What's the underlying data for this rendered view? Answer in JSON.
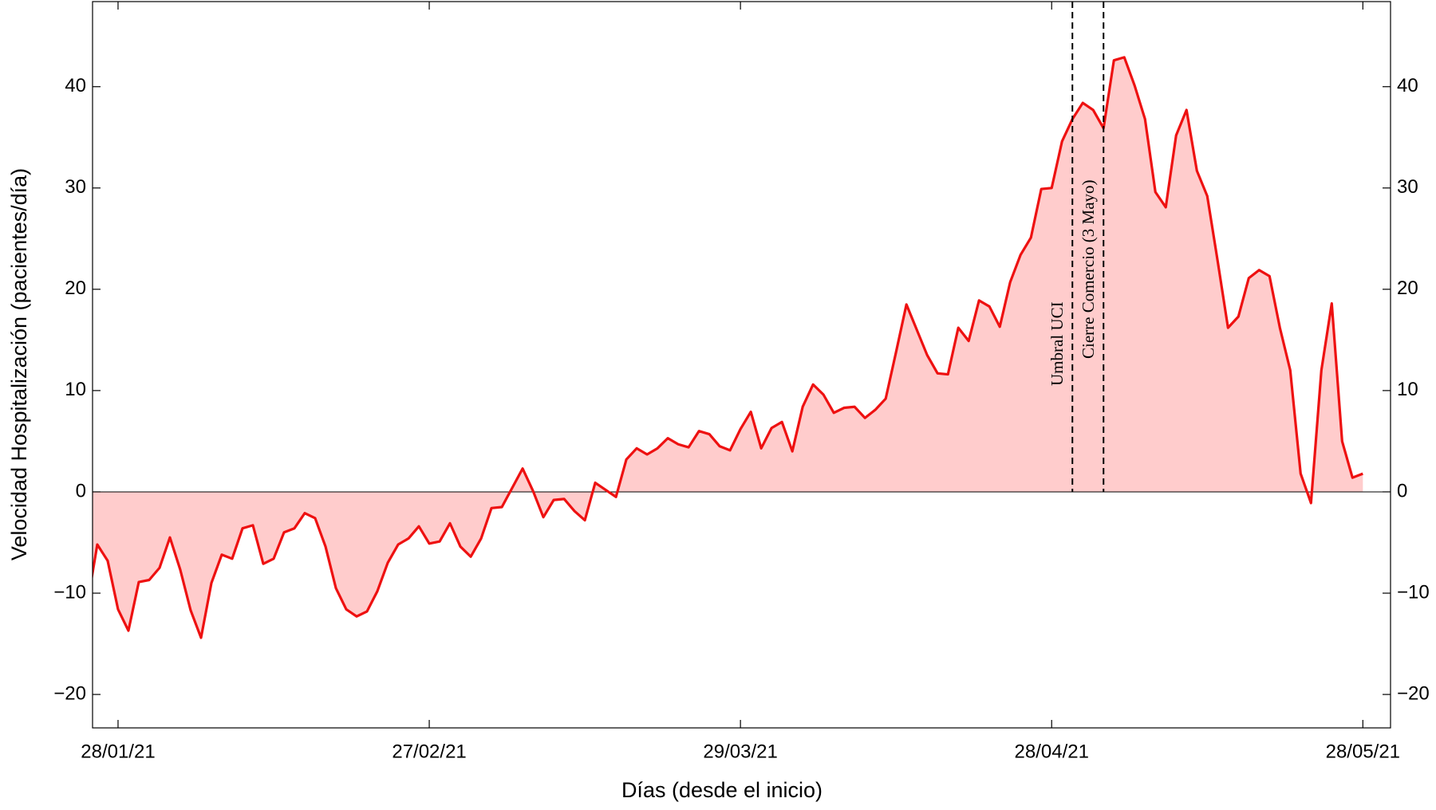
{
  "chart_data": {
    "type": "area",
    "x_label": "Días (desde el inicio)",
    "y_label": "Velocidad Hospitalización (pacientes/día)",
    "x": [
      "2021-01-25",
      "2021-01-26",
      "2021-01-27",
      "2021-01-28",
      "2021-01-29",
      "2021-01-30",
      "2021-01-31",
      "2021-02-01",
      "2021-02-02",
      "2021-02-03",
      "2021-02-04",
      "2021-02-05",
      "2021-02-06",
      "2021-02-07",
      "2021-02-08",
      "2021-02-09",
      "2021-02-10",
      "2021-02-11",
      "2021-02-12",
      "2021-02-13",
      "2021-02-14",
      "2021-02-15",
      "2021-02-16",
      "2021-02-17",
      "2021-02-18",
      "2021-02-19",
      "2021-02-20",
      "2021-02-21",
      "2021-02-22",
      "2021-02-23",
      "2021-02-24",
      "2021-02-25",
      "2021-02-26",
      "2021-02-27",
      "2021-02-28",
      "2021-03-01",
      "2021-03-02",
      "2021-03-03",
      "2021-03-04",
      "2021-03-05",
      "2021-03-06",
      "2021-03-07",
      "2021-03-08",
      "2021-03-09",
      "2021-03-10",
      "2021-03-11",
      "2021-03-12",
      "2021-03-13",
      "2021-03-14",
      "2021-03-15",
      "2021-03-16",
      "2021-03-17",
      "2021-03-18",
      "2021-03-19",
      "2021-03-20",
      "2021-03-21",
      "2021-03-22",
      "2021-03-23",
      "2021-03-24",
      "2021-03-25",
      "2021-03-26",
      "2021-03-27",
      "2021-03-28",
      "2021-03-29",
      "2021-03-30",
      "2021-03-31",
      "2021-04-01",
      "2021-04-02",
      "2021-04-03",
      "2021-04-04",
      "2021-04-05",
      "2021-04-06",
      "2021-04-07",
      "2021-04-08",
      "2021-04-09",
      "2021-04-10",
      "2021-04-11",
      "2021-04-12",
      "2021-04-13",
      "2021-04-14",
      "2021-04-15",
      "2021-04-16",
      "2021-04-17",
      "2021-04-18",
      "2021-04-19",
      "2021-04-20",
      "2021-04-21",
      "2021-04-22",
      "2021-04-23",
      "2021-04-24",
      "2021-04-25",
      "2021-04-26",
      "2021-04-27",
      "2021-04-28",
      "2021-04-29",
      "2021-04-30",
      "2021-05-01",
      "2021-05-02",
      "2021-05-03",
      "2021-05-04",
      "2021-05-05",
      "2021-05-06",
      "2021-05-07",
      "2021-05-08",
      "2021-05-09",
      "2021-05-10",
      "2021-05-11",
      "2021-05-12",
      "2021-05-13",
      "2021-05-14",
      "2021-05-15",
      "2021-05-16",
      "2021-05-17",
      "2021-05-18",
      "2021-05-19",
      "2021-05-20",
      "2021-05-21",
      "2021-05-22",
      "2021-05-23",
      "2021-05-24",
      "2021-05-25",
      "2021-05-26",
      "2021-05-27",
      "2021-05-28"
    ],
    "series": [
      {
        "color": "#ee1111",
        "fill": "#ffcccc",
        "values": [
          -11.3,
          -5.2,
          -6.8,
          -11.6,
          -13.7,
          -8.9,
          -8.7,
          -7.5,
          -4.5,
          -7.7,
          -11.7,
          -14.4,
          -9,
          -6.2,
          -6.6,
          -3.6,
          -3.3,
          -7.1,
          -6.6,
          -4,
          -3.6,
          -2.1,
          -2.6,
          -5.4,
          -9.5,
          -11.6,
          -12.3,
          -11.8,
          -9.8,
          -7,
          -5.2,
          -4.6,
          -3.4,
          -5.1,
          -4.9,
          -3.1,
          -5.4,
          -6.4,
          -4.6,
          -1.6,
          -1.5,
          0.4,
          2.3,
          0.1,
          -2.5,
          -0.8,
          -0.7,
          -1.9,
          -2.8,
          0.9,
          0.2,
          -0.5,
          3.2,
          4.3,
          3.7,
          4.3,
          5.3,
          4.7,
          4.4,
          6,
          5.7,
          4.5,
          4.1,
          6.2,
          7.9,
          4.3,
          6.3,
          6.9,
          4,
          8.4,
          10.6,
          9.6,
          7.8,
          8.3,
          8.4,
          7.3,
          8.1,
          9.2,
          13.8,
          18.5,
          16,
          13.5,
          11.7,
          11.6,
          16.2,
          14.9,
          18.9,
          18.3,
          16.3,
          20.7,
          23.4,
          25.1,
          29.9,
          30,
          34.6,
          36.8,
          38.4,
          37.7,
          35.9,
          42.6,
          42.9,
          40.1,
          36.8,
          29.6,
          28.1,
          35.2,
          37.7,
          31.7,
          29.2,
          22.8,
          16.2,
          17.3,
          21.1,
          21.9,
          21.3,
          16.2,
          12,
          1.8,
          -1.1,
          12,
          18.6,
          5,
          1.4,
          1.8
        ]
      }
    ],
    "xlim": [
      "2021-01-25T13:00:00Z",
      "2021-05-30T16:00:00Z"
    ],
    "xticks": [
      {
        "value": "2021-01-28",
        "label": "28/01/21"
      },
      {
        "value": "2021-02-27",
        "label": "27/02/21"
      },
      {
        "value": "2021-03-29",
        "label": "29/03/21"
      },
      {
        "value": "2021-04-28",
        "label": "28/04/21"
      },
      {
        "value": "2021-05-28",
        "label": "28/05/21"
      }
    ],
    "ylim": [
      -23.3,
      48.4
    ],
    "yticks": [
      {
        "value": -20,
        "label": "−20"
      },
      {
        "value": -10,
        "label": "−10"
      },
      0,
      10,
      20,
      30,
      40
    ],
    "annotations": [
      {
        "x": "2021-04-30",
        "label": "Umbral UCI"
      },
      {
        "x": "2021-05-03",
        "label": "Cierre Comercio (3 Mayo)"
      }
    ]
  }
}
